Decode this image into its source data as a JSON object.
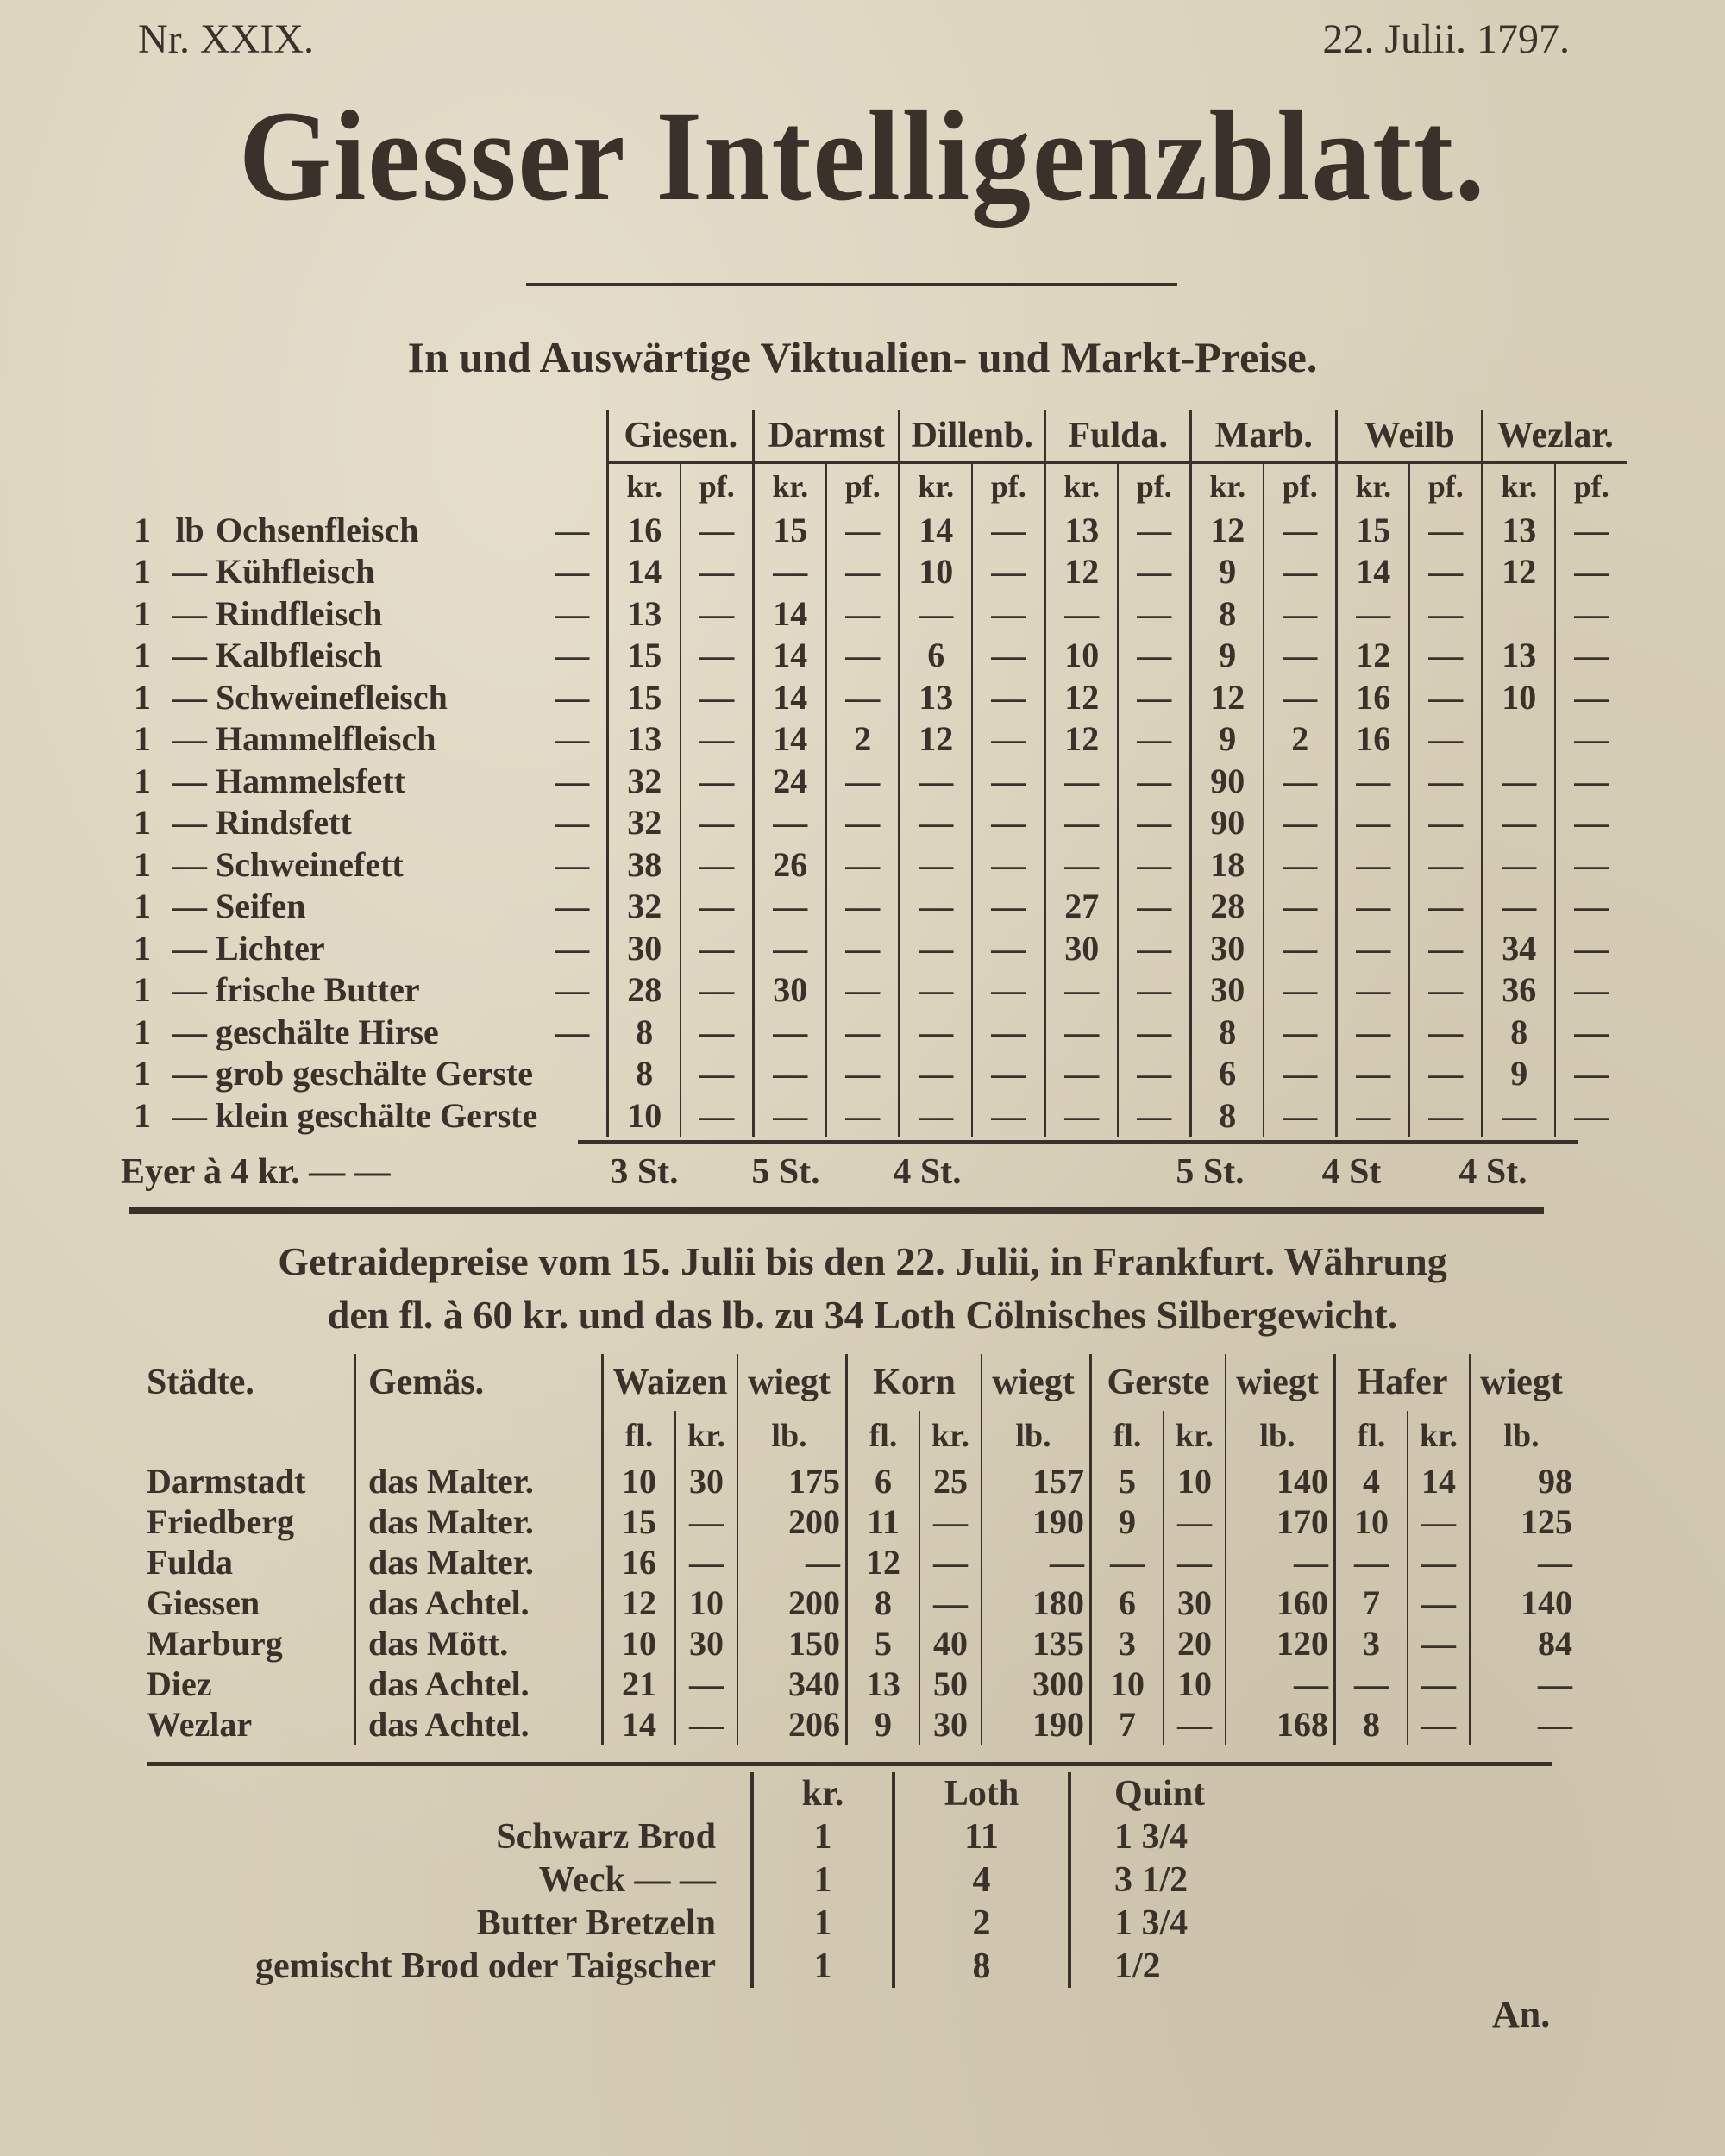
{
  "header": {
    "issue": "Nr. XXIX.",
    "date": "22. Julii. 1797.",
    "title": "Giesser Intelligenzblatt."
  },
  "market": {
    "title": "In und Auswärtige Viktualien- und Markt-Preise.",
    "cities": [
      "Giesen.",
      "Darmst",
      "Dillenb.",
      "Fulda.",
      "Marb.",
      "Weilb",
      "Wezlar."
    ],
    "unit_kr": "kr.",
    "unit_pf": "pf.",
    "rows": [
      {
        "qty": "1",
        "unit": "lb",
        "item": "Ochsenfleisch",
        "dash": "—",
        "values": [
          [
            "16",
            "—"
          ],
          [
            "15",
            "—"
          ],
          [
            "14",
            "—"
          ],
          [
            "13",
            "—"
          ],
          [
            "12",
            "—"
          ],
          [
            "15",
            "—"
          ],
          [
            "13",
            "—"
          ]
        ]
      },
      {
        "qty": "1",
        "unit": "—",
        "item": "Kühfleisch",
        "dash": "—",
        "values": [
          [
            "14",
            "—"
          ],
          [
            "—",
            "—"
          ],
          [
            "10",
            "—"
          ],
          [
            "12",
            "—"
          ],
          [
            "9",
            "—"
          ],
          [
            "14",
            "—"
          ],
          [
            "12",
            "—"
          ]
        ]
      },
      {
        "qty": "1",
        "unit": "—",
        "item": "Rindfleisch",
        "dash": "—",
        "values": [
          [
            "13",
            "—"
          ],
          [
            "14",
            "—"
          ],
          [
            "—",
            "—"
          ],
          [
            "—",
            "—"
          ],
          [
            "8",
            "—"
          ],
          [
            "—",
            "—"
          ],
          [
            "",
            "—"
          ]
        ]
      },
      {
        "qty": "1",
        "unit": "—",
        "item": "Kalbfleisch",
        "dash": "—",
        "values": [
          [
            "15",
            "—"
          ],
          [
            "14",
            "—"
          ],
          [
            "6",
            "—"
          ],
          [
            "10",
            "—"
          ],
          [
            "9",
            "—"
          ],
          [
            "12",
            "—"
          ],
          [
            "13",
            "—"
          ]
        ]
      },
      {
        "qty": "1",
        "unit": "—",
        "item": "Schweinefleisch",
        "dash": "—",
        "values": [
          [
            "15",
            "—"
          ],
          [
            "14",
            "—"
          ],
          [
            "13",
            "—"
          ],
          [
            "12",
            "—"
          ],
          [
            "12",
            "—"
          ],
          [
            "16",
            "—"
          ],
          [
            "10",
            "—"
          ]
        ]
      },
      {
        "qty": "1",
        "unit": "—",
        "item": "Hammelfleisch",
        "dash": "—",
        "values": [
          [
            "13",
            "—"
          ],
          [
            "14",
            "2"
          ],
          [
            "12",
            "—"
          ],
          [
            "12",
            "—"
          ],
          [
            "9",
            "2"
          ],
          [
            "16",
            "—"
          ],
          [
            "",
            "—"
          ]
        ]
      },
      {
        "qty": "1",
        "unit": "—",
        "item": "Hammelsfett",
        "dash": "—",
        "values": [
          [
            "32",
            "—"
          ],
          [
            "24",
            "—"
          ],
          [
            "—",
            "—"
          ],
          [
            "—",
            "—"
          ],
          [
            "90",
            "—"
          ],
          [
            "—",
            "—"
          ],
          [
            "—",
            "—"
          ]
        ]
      },
      {
        "qty": "1",
        "unit": "—",
        "item": "Rindsfett",
        "dash": "—",
        "values": [
          [
            "32",
            "—"
          ],
          [
            "—",
            "—"
          ],
          [
            "—",
            "—"
          ],
          [
            "—",
            "—"
          ],
          [
            "90",
            "—"
          ],
          [
            "—",
            "—"
          ],
          [
            "—",
            "—"
          ]
        ]
      },
      {
        "qty": "1",
        "unit": "—",
        "item": "Schweinefett",
        "dash": "—",
        "values": [
          [
            "38",
            "—"
          ],
          [
            "26",
            "—"
          ],
          [
            "—",
            "—"
          ],
          [
            "—",
            "—"
          ],
          [
            "18",
            "—"
          ],
          [
            "—",
            "—"
          ],
          [
            "—",
            "—"
          ]
        ]
      },
      {
        "qty": "1",
        "unit": "—",
        "item": "Seifen",
        "dash": "—",
        "values": [
          [
            "32",
            "—"
          ],
          [
            "—",
            "—"
          ],
          [
            "—",
            "—"
          ],
          [
            "27",
            "—"
          ],
          [
            "28",
            "—"
          ],
          [
            "—",
            "—"
          ],
          [
            "—",
            "—"
          ]
        ]
      },
      {
        "qty": "1",
        "unit": "—",
        "item": "Lichter",
        "dash": "—",
        "values": [
          [
            "30",
            "—"
          ],
          [
            "—",
            "—"
          ],
          [
            "—",
            "—"
          ],
          [
            "30",
            "—"
          ],
          [
            "30",
            "—"
          ],
          [
            "—",
            "—"
          ],
          [
            "34",
            "—"
          ]
        ]
      },
      {
        "qty": "1",
        "unit": "—",
        "item": "frische Butter",
        "dash": "—",
        "values": [
          [
            "28",
            "—"
          ],
          [
            "30",
            "—"
          ],
          [
            "—",
            "—"
          ],
          [
            "—",
            "—"
          ],
          [
            "30",
            "—"
          ],
          [
            "—",
            "—"
          ],
          [
            "36",
            "—"
          ]
        ]
      },
      {
        "qty": "1",
        "unit": "—",
        "item": "geschälte Hirse",
        "dash": "—",
        "values": [
          [
            "8",
            "—"
          ],
          [
            "—",
            "—"
          ],
          [
            "—",
            "—"
          ],
          [
            "—",
            "—"
          ],
          [
            "8",
            "—"
          ],
          [
            "—",
            "—"
          ],
          [
            "8",
            "—"
          ]
        ]
      },
      {
        "qty": "1",
        "unit": "—",
        "item": "grob geschälte Gerste",
        "dash": "",
        "values": [
          [
            "8",
            "—"
          ],
          [
            "—",
            "—"
          ],
          [
            "—",
            "—"
          ],
          [
            "—",
            "—"
          ],
          [
            "6",
            "—"
          ],
          [
            "—",
            "—"
          ],
          [
            "9",
            "—"
          ]
        ]
      },
      {
        "qty": "1",
        "unit": "—",
        "item": "klein geschälte Gerste",
        "dash": "",
        "values": [
          [
            "10",
            "—"
          ],
          [
            "—",
            "—"
          ],
          [
            "—",
            "—"
          ],
          [
            "—",
            "—"
          ],
          [
            "8",
            "—"
          ],
          [
            "—",
            "—"
          ],
          [
            "—",
            "—"
          ]
        ]
      }
    ],
    "eggs": {
      "label": "Eyer à 4 kr. — —",
      "values": [
        "3 St.",
        "5 St.",
        "4 St.",
        "",
        "5 St.",
        "4 St",
        "4 St."
      ]
    }
  },
  "grain": {
    "intro_1": "Getraidepreise vom 15. Julii bis den 22. Julii, in Frankfurt. Währung",
    "intro_2": "den fl. à 60 kr. und das lb. zu 34 Loth Cölnisches Silbergewicht.",
    "col_city": "Städte.",
    "col_measure": "Gemäs.",
    "grains": [
      "Waizen",
      "Korn",
      "Gerste",
      "Hafer"
    ],
    "weighs": "wiegt",
    "unit_fl": "fl.",
    "unit_kr": "kr.",
    "unit_lb": "lb.",
    "rows": [
      {
        "city": "Darmstadt",
        "measure": "das Malter.",
        "values": [
          [
            "10",
            "30",
            "175"
          ],
          [
            "6",
            "25",
            "157"
          ],
          [
            "5",
            "10",
            "140"
          ],
          [
            "4",
            "14",
            "98"
          ]
        ]
      },
      {
        "city": "Friedberg",
        "measure": "das Malter.",
        "values": [
          [
            "15",
            "—",
            "200"
          ],
          [
            "11",
            "—",
            "190"
          ],
          [
            "9",
            "—",
            "170"
          ],
          [
            "10",
            "—",
            "125"
          ]
        ]
      },
      {
        "city": "Fulda",
        "measure": "das Malter.",
        "values": [
          [
            "16",
            "—",
            "—"
          ],
          [
            "12",
            "—",
            "—"
          ],
          [
            "—",
            "—",
            "—"
          ],
          [
            "—",
            "—",
            "—"
          ]
        ]
      },
      {
        "city": "Giessen",
        "measure": "das Achtel.",
        "values": [
          [
            "12",
            "10",
            "200"
          ],
          [
            "8",
            "—",
            "180"
          ],
          [
            "6",
            "30",
            "160"
          ],
          [
            "7",
            "—",
            "140"
          ]
        ]
      },
      {
        "city": "Marburg",
        "measure": "das Mött.",
        "values": [
          [
            "10",
            "30",
            "150"
          ],
          [
            "5",
            "40",
            "135"
          ],
          [
            "3",
            "20",
            "120"
          ],
          [
            "3",
            "—",
            "84"
          ]
        ]
      },
      {
        "city": "Diez",
        "measure": "das Achtel.",
        "values": [
          [
            "21",
            "—",
            "340"
          ],
          [
            "13",
            "50",
            "300"
          ],
          [
            "10",
            "10",
            "—"
          ],
          [
            "—",
            "—",
            "—"
          ]
        ]
      },
      {
        "city": "Wezlar",
        "measure": "das Achtel.",
        "values": [
          [
            "14",
            "—",
            "206"
          ],
          [
            "9",
            "30",
            "190"
          ],
          [
            "7",
            "—",
            "168"
          ],
          [
            "8",
            "—",
            "—"
          ]
        ]
      }
    ]
  },
  "bread": {
    "headers": [
      "kr.",
      "Loth",
      "Quint"
    ],
    "rows": [
      {
        "item": "Schwarz Brod",
        "kr": "1",
        "loth": "11",
        "quint": "1 3/4"
      },
      {
        "item": "Weck — —",
        "kr": "1",
        "loth": "4",
        "quint": "3 1/2"
      },
      {
        "item": "Butter Bretzeln",
        "kr": "1",
        "loth": "2",
        "quint": "1 3/4"
      },
      {
        "item": "gemischt Brod oder Taigscher",
        "kr": "1",
        "loth": "8",
        "quint": "1/2"
      }
    ]
  },
  "catchword": "An."
}
